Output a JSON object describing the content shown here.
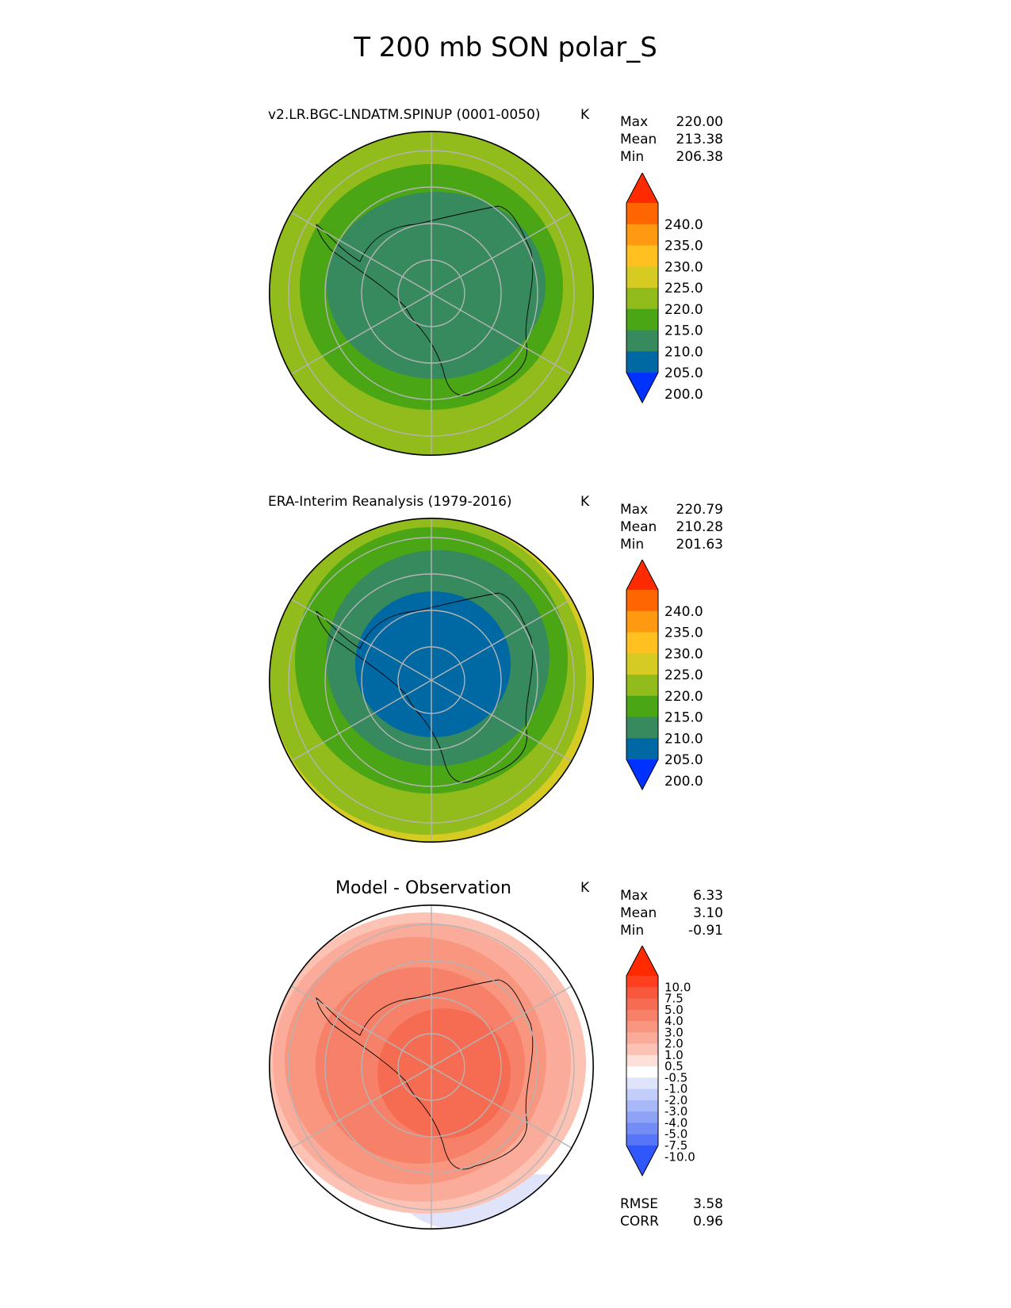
{
  "title": "T 200 mb SON polar_S",
  "chart_data": [
    {
      "type": "heatmap",
      "projection": "south-polar-stereographic",
      "title": "v2.LR.BGC-LNDATM.SPINUP (0001-0050)",
      "units": "K",
      "stats": [
        {
          "label": "Max",
          "value": "220.00"
        },
        {
          "label": "Mean",
          "value": "213.38"
        },
        {
          "label": "Min",
          "value": "206.38"
        }
      ],
      "colorbar": {
        "levels": [
          "240.0",
          "235.0",
          "230.0",
          "225.0",
          "220.0",
          "215.0",
          "210.0",
          "205.0",
          "200.0"
        ],
        "colors": [
          "#ff2a00",
          "#ff6600",
          "#ff9910",
          "#ffc020",
          "#d6cb22",
          "#92bb1c",
          "#4aa614",
          "#368a5e",
          "#0068a3",
          "#0032ff"
        ],
        "extend": "both"
      },
      "field_bands": [
        {
          "value_range": "215-220",
          "color": "#92bb1c"
        },
        {
          "value_range": "210-215",
          "color": "#4aa614"
        },
        {
          "value_range": "205-210",
          "color": "#368a5e"
        }
      ]
    },
    {
      "type": "heatmap",
      "projection": "south-polar-stereographic",
      "title": "ERA-Interim Reanalysis (1979-2016)",
      "units": "K",
      "stats": [
        {
          "label": "Max",
          "value": "220.79"
        },
        {
          "label": "Mean",
          "value": "210.28"
        },
        {
          "label": "Min",
          "value": "201.63"
        }
      ],
      "colorbar": {
        "levels": [
          "240.0",
          "235.0",
          "230.0",
          "225.0",
          "220.0",
          "215.0",
          "210.0",
          "205.0",
          "200.0"
        ],
        "colors": [
          "#ff2a00",
          "#ff6600",
          "#ff9910",
          "#ffc020",
          "#d6cb22",
          "#92bb1c",
          "#4aa614",
          "#368a5e",
          "#0068a3",
          "#0032ff"
        ],
        "extend": "both"
      },
      "field_bands": [
        {
          "value_range": "220-225",
          "color": "#d6cb22"
        },
        {
          "value_range": "215-220",
          "color": "#92bb1c"
        },
        {
          "value_range": "210-215",
          "color": "#4aa614"
        },
        {
          "value_range": "205-210",
          "color": "#368a5e"
        },
        {
          "value_range": "200-205",
          "color": "#0068a3"
        }
      ]
    },
    {
      "type": "heatmap",
      "projection": "south-polar-stereographic",
      "title": "Model - Observation",
      "units": "K",
      "stats": [
        {
          "label": "Max",
          "value": "6.33"
        },
        {
          "label": "Mean",
          "value": "3.10"
        },
        {
          "label": "Min",
          "value": "-0.91"
        }
      ],
      "colorbar": {
        "levels": [
          "10.0",
          "7.5",
          "5.0",
          "4.0",
          "3.0",
          "2.0",
          "1.0",
          "0.5",
          "-0.5",
          "-1.0",
          "-2.0",
          "-3.0",
          "-4.0",
          "-5.0",
          "-7.5",
          "-10.0"
        ],
        "colors": [
          "#ff2a00",
          "#ff4020",
          "#f8583c",
          "#f66c52",
          "#f78068",
          "#f8967f",
          "#faab99",
          "#fcc3b5",
          "#fde0d9",
          "#ffffff",
          "#dfe4fb",
          "#c3cdf9",
          "#a9b8f7",
          "#8ea2f6",
          "#748cf6",
          "#5775f8",
          "#3057fb"
        ],
        "extend": "both"
      },
      "field_bands": [
        {
          "value_range": "4-5",
          "color": "#f66c52"
        },
        {
          "value_range": "3-4",
          "color": "#f78068"
        },
        {
          "value_range": "2-3",
          "color": "#f8967f"
        },
        {
          "value_range": "1-2",
          "color": "#faab99"
        },
        {
          "value_range": "0.5-1",
          "color": "#fcc3b5"
        },
        {
          "value_range": "-0.5-0.5",
          "color": "#ffffff"
        },
        {
          "value_range": "-1--0.5",
          "color": "#dfe4fb"
        }
      ],
      "metrics": [
        {
          "label": "RMSE",
          "value": "3.58"
        },
        {
          "label": "CORR",
          "value": "0.96"
        }
      ]
    }
  ]
}
